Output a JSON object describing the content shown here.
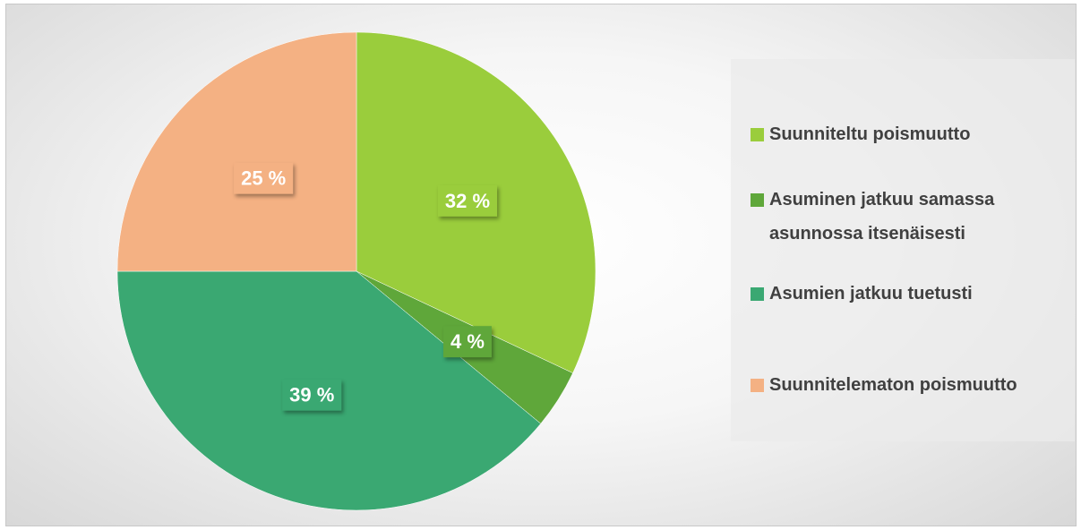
{
  "chart_data": {
    "type": "pie",
    "categories": [
      "Suunniteltu poismuutto",
      "Asuminen jatkuu samassa asunnossa itsenäisesti",
      "Asumien jatkuu tuetusti",
      "Suunnitelematon poismuutto"
    ],
    "values": [
      32,
      4,
      39,
      25
    ],
    "value_labels": [
      "32 %",
      "4 %",
      "39 %",
      "25 %"
    ],
    "colors": [
      "#9acd3c",
      "#5fa73a",
      "#3aa872",
      "#f4b183"
    ],
    "legend": "right"
  }
}
